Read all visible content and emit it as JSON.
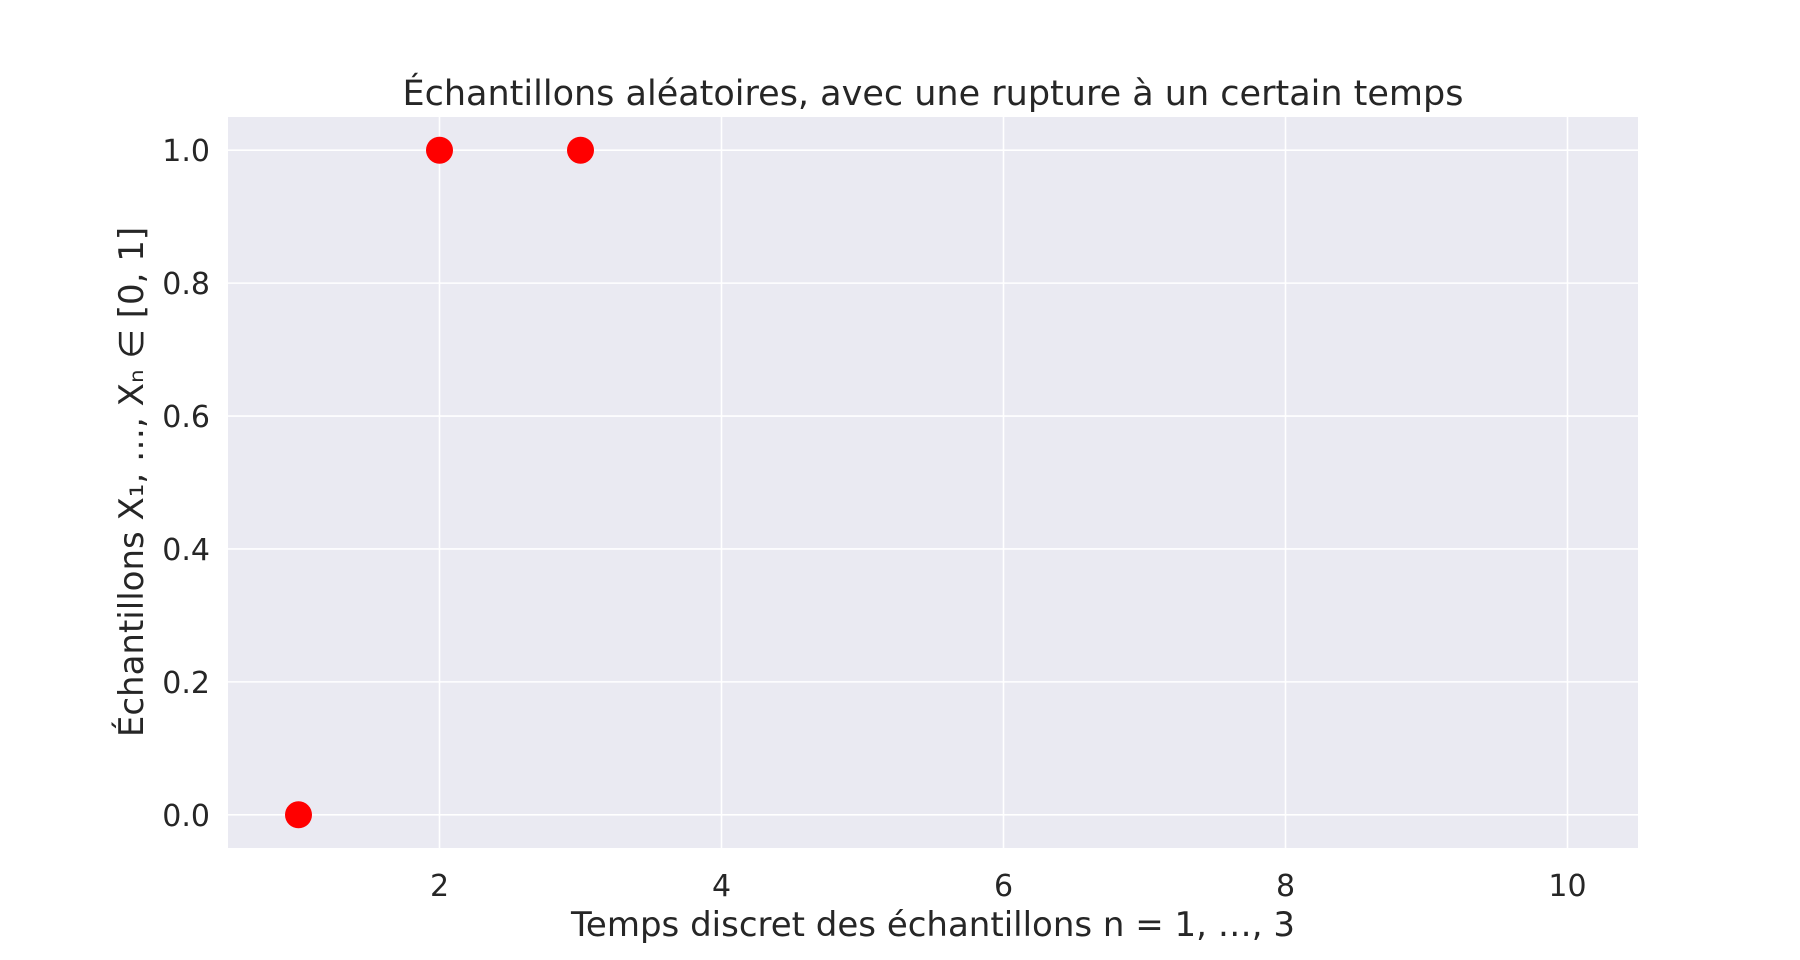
{
  "chart_data": {
    "type": "scatter",
    "title": "Échantillons aléatoires, avec une rupture à un certain temps",
    "xlabel": "Temps discret des échantillons n = 1, …, 3",
    "ylabel": "Échantillons X₁, …, Xₙ ∈ [0, 1]",
    "xlim": [
      0.5,
      10.5
    ],
    "ylim": [
      -0.05,
      1.05
    ],
    "x_ticks": [
      2,
      4,
      6,
      8,
      10
    ],
    "y_ticks": [
      0.0,
      0.2,
      0.4,
      0.6,
      0.8,
      1.0
    ],
    "x_tick_labels": [
      "2",
      "4",
      "6",
      "8",
      "10"
    ],
    "y_tick_labels": [
      "0.0",
      "0.2",
      "0.4",
      "0.6",
      "0.8",
      "1.0"
    ],
    "grid": true,
    "series": [
      {
        "x": [
          1,
          2,
          3
        ],
        "y": [
          0,
          1,
          1
        ]
      }
    ],
    "colors": {
      "background": "#eaeaf2",
      "grid": "#ffffff",
      "marker": "#ff0000",
      "text": "#262626"
    }
  }
}
